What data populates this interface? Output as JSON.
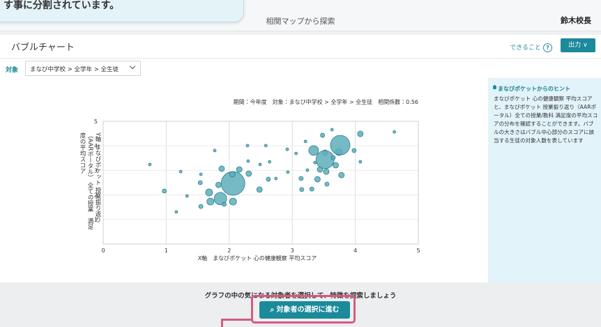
{
  "notice": "す事に分割されています。",
  "header": {
    "title": "相関マップから探索",
    "user": "鈴木校長"
  },
  "toolbar": {
    "title": "バブルチャート",
    "help": "できること",
    "export": "出力"
  },
  "filter": {
    "label": "対象",
    "value": "まなび中学校 > 全学年 > 全生徒"
  },
  "chart_data": {
    "type": "bubble",
    "subtitle": "期間：今年度　対象：まなび中学校 > 全学年 > 全生徒　相関係数：0.56",
    "x_label": "X軸　まなびポケット 心の健康観察 平均スコア",
    "y_label": "Y軸 まなびポケット 授業振り返り（AARポータル） 全ての授業　満足度の平均スコア",
    "x": [
      0.74,
      0.97,
      1.16,
      1.23,
      1.33,
      1.55,
      1.54,
      1.55,
      1.68,
      1.7,
      1.77,
      1.83,
      1.86,
      1.88,
      1.92,
      2.06,
      2.06,
      2.05,
      2.16,
      2.29,
      2.3,
      2.31,
      2.48,
      2.49,
      2.58,
      2.62,
      2.64,
      2.74,
      2.92,
      2.93,
      3.06,
      3.14,
      3.15,
      3.21,
      3.24,
      3.31,
      3.34,
      3.36,
      3.4,
      3.44,
      3.48,
      3.52,
      3.52,
      3.54,
      3.55,
      3.63,
      3.65,
      3.69,
      3.74,
      3.76,
      3.78,
      3.98,
      4.08,
      4.08,
      4.62
    ],
    "values": [
      3.24,
      2.16,
      1.31,
      2.95,
      1.96,
      2.84,
      2.5,
      1.53,
      2.1,
      1.73,
      3.81,
      2.41,
      1.85,
      3.07,
      1.62,
      2.47,
      1.73,
      2.84,
      3.04,
      4.01,
      3.38,
      2.87,
      2.22,
      3.24,
      4.01,
      2.64,
      3.35,
      2.67,
      3.86,
      2.93,
      3.69,
      2.67,
      2.22,
      4.18,
      3.01,
      2.24,
      3.81,
      3.32,
      2.64,
      3.04,
      4.43,
      3.72,
      3.44,
      2.95,
      2.44,
      4.66,
      3.52,
      3.21,
      3.75,
      4.03,
      2.81,
      3.81,
      3.35,
      4.49,
      4.57
    ],
    "sizes": [
      4,
      9,
      4,
      4,
      4,
      4,
      9,
      9,
      25,
      25,
      4,
      16,
      81,
      16,
      9,
      289,
      25,
      16,
      16,
      4,
      4,
      16,
      16,
      4,
      4,
      9,
      4,
      4,
      4,
      4,
      4,
      9,
      9,
      4,
      4,
      9,
      49,
      4,
      16,
      16,
      9,
      16,
      169,
      16,
      9,
      4,
      9,
      16,
      25,
      196,
      16,
      9,
      4,
      16,
      4
    ],
    "color": "#5eaebb",
    "xlim": [
      0,
      5
    ],
    "ylim": [
      0,
      5
    ],
    "xticks": [
      0,
      1,
      2,
      3,
      4,
      5
    ],
    "yticks": [
      1,
      2,
      3,
      4,
      5
    ],
    "grid": true
  },
  "hint": {
    "title": "まなびポケットからのヒント",
    "text": "まなびポケット 心の健康観察 平均スコアと、まなびポケット 授業振り返り（AARポータル）全ての授業/教科 満足度の平均スコアの分布を確認することができます。バブルの大きさはバブル中心部分のスコアに該当する生徒の対象人数を表しています"
  },
  "footer": {
    "prompt": "グラフの中の気になる対象者を選択して、特徴を探索しましょう",
    "button": "対象者の選択に進む"
  }
}
